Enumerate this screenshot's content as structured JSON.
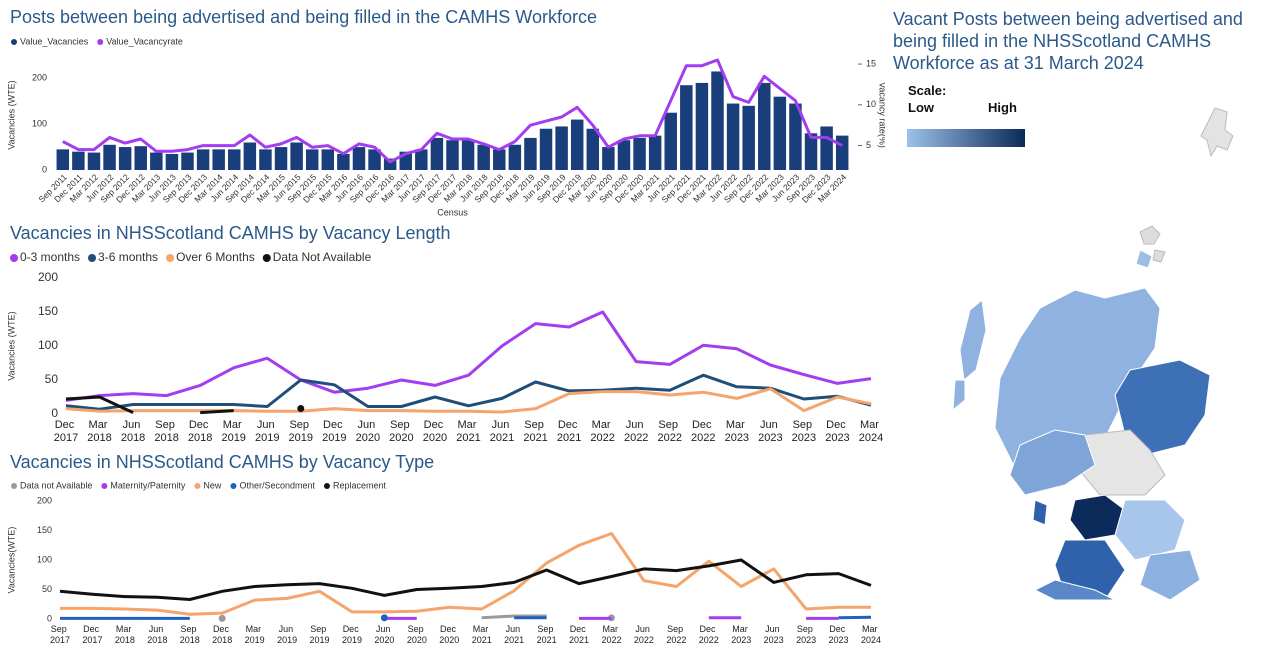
{
  "chart_data": [
    {
      "type": "combo",
      "title": "Posts between being advertised and being filled in the CAMHS Workforce",
      "x_label": "Census",
      "y_label": "Vacancies (WTE)",
      "y2_label": "Vacancy rate(%)",
      "categories": [
        "Sep 2011",
        "Dec 2011",
        "Mar 2012",
        "Jun 2012",
        "Sep 2012",
        "Dec 2012",
        "Mar 2013",
        "Jun 2013",
        "Sep 2013",
        "Dec 2013",
        "Mar 2014",
        "Jun 2014",
        "Sep 2014",
        "Dec 2014",
        "Mar 2015",
        "Jun 2015",
        "Sep 2015",
        "Dec 2015",
        "Mar 2016",
        "Jun 2016",
        "Sep 2016",
        "Dec 2016",
        "Mar 2017",
        "Jun 2017",
        "Sep 2017",
        "Dec 2017",
        "Mar 2018",
        "Jun 2018",
        "Sep 2018",
        "Dec 2018",
        "Mar 2019",
        "Jun 2019",
        "Sep 2019",
        "Dec 2019",
        "Mar 2020",
        "Jun 2020",
        "Sep 2020",
        "Dec 2020",
        "Mar 2021",
        "Jun 2021",
        "Sep 2021",
        "Dec 2021",
        "Mar 2022",
        "Jun 2022",
        "Sep 2022",
        "Dec 2022",
        "Mar 2023",
        "Jun 2023",
        "Sep 2023",
        "Dec 2023",
        "Mar 2024"
      ],
      "series": [
        {
          "name": "Value_Vacancies",
          "type": "bar",
          "color": "#1a3d7c",
          "values": [
            45,
            40,
            38,
            55,
            50,
            52,
            38,
            35,
            38,
            45,
            45,
            45,
            60,
            45,
            50,
            60,
            45,
            45,
            35,
            50,
            45,
            25,
            40,
            45,
            70,
            65,
            65,
            55,
            45,
            55,
            70,
            90,
            95,
            110,
            90,
            50,
            65,
            70,
            75,
            125,
            185,
            190,
            215,
            145,
            140,
            190,
            160,
            145,
            80,
            95,
            75
          ]
        },
        {
          "name": "Value_Vacancyrate",
          "type": "line",
          "axis": "y2",
          "color": "#a23df0",
          "values": [
            5.5,
            4.5,
            4.5,
            6,
            5.3,
            5.8,
            4.3,
            4.3,
            4.5,
            5,
            5,
            5,
            6.3,
            4.8,
            5.2,
            6,
            4.8,
            5,
            4,
            5.2,
            4.8,
            3,
            4,
            4.5,
            6.5,
            5.8,
            5.8,
            5.2,
            4.5,
            5.5,
            7.5,
            8,
            8.5,
            9.7,
            7.5,
            4.8,
            5.8,
            6.2,
            6.2,
            10.5,
            14.8,
            14.8,
            15.5,
            11,
            10.3,
            13.5,
            12,
            10.5,
            6,
            6,
            5
          ]
        }
      ],
      "ylim": [
        0,
        240
      ],
      "yticks": [
        0,
        100,
        200
      ],
      "y2lim": [
        2,
        15.5
      ],
      "y2ticks": [
        5,
        10,
        15
      ],
      "grid": false
    },
    {
      "type": "line",
      "title": "Vacancies in NHSScotland CAMHS by Vacancy Length",
      "y_label": "Vacancies (WTE)",
      "categories": [
        "Dec 2017",
        "Mar 2018",
        "Jun 2018",
        "Sep 2018",
        "Dec 2018",
        "Mar 2019",
        "Jun 2019",
        "Sep 2019",
        "Dec 2019",
        "Jun 2020",
        "Sep 2020",
        "Dec 2020",
        "Mar 2021",
        "Jun 2021",
        "Sep 2021",
        "Dec 2021",
        "Mar 2022",
        "Jun 2022",
        "Sep 2022",
        "Dec 2022",
        "Mar 2023",
        "Jun 2023",
        "Sep 2023",
        "Dec 2023",
        "Mar 2024"
      ],
      "series": [
        {
          "name": "0-3 months",
          "color": "#a23df0",
          "values": [
            20,
            27,
            30,
            27,
            42,
            68,
            82,
            50,
            32,
            38,
            50,
            42,
            57,
            100,
            133,
            128,
            150,
            77,
            73,
            101,
            96,
            72,
            58,
            45,
            52
          ]
        },
        {
          "name": "3-6 months",
          "color": "#1f4e79",
          "values": [
            12,
            7,
            14,
            14,
            14,
            14,
            11,
            50,
            43,
            11,
            11,
            25,
            12,
            23,
            47,
            34,
            35,
            38,
            35,
            57,
            40,
            38,
            22,
            26,
            13
          ]
        },
        {
          "name": "Over 6 Months",
          "color": "#f5a46b",
          "values": [
            8,
            4,
            5,
            5,
            5,
            5,
            4,
            4,
            8,
            5,
            5,
            4,
            4,
            3,
            8,
            30,
            33,
            33,
            28,
            32,
            23,
            37,
            5,
            25,
            15
          ]
        },
        {
          "name": "Data Not Available",
          "color": "#111111",
          "values": [
            22,
            25,
            2,
            null,
            2,
            5,
            null,
            8,
            null,
            null,
            null,
            null,
            null,
            null,
            null,
            null,
            null,
            null,
            null,
            null,
            null,
            null,
            null,
            null,
            null
          ]
        }
      ],
      "ylim": [
        0,
        200
      ],
      "yticks": [
        0,
        50,
        100,
        150,
        200
      ],
      "grid": false
    },
    {
      "type": "line",
      "title": "Vacancies in NHSScotland CAMHS by Vacancy Type",
      "y_label": "Vacancies(WTE)",
      "categories": [
        "Sep 2017",
        "Dec 2017",
        "Mar 2018",
        "Jun 2018",
        "Sep 2018",
        "Dec 2018",
        "Mar 2019",
        "Jun 2019",
        "Sep 2019",
        "Dec 2019",
        "Jun 2020",
        "Sep 2020",
        "Dec 2020",
        "Mar 2021",
        "Jun 2021",
        "Sep 2021",
        "Dec 2021",
        "Mar 2022",
        "Jun 2022",
        "Sep 2022",
        "Dec 2022",
        "Mar 2023",
        "Jun 2023",
        "Sep 2023",
        "Dec 2023",
        "Mar 2024"
      ],
      "series": [
        {
          "name": "Data not Available",
          "color": "#9a9a9a",
          "values": [
            null,
            null,
            null,
            null,
            null,
            1,
            null,
            null,
            null,
            null,
            null,
            null,
            null,
            2,
            5,
            5,
            null,
            2,
            null,
            null,
            null,
            null,
            null,
            null,
            null,
            null
          ]
        },
        {
          "name": "Maternity/Paternity",
          "color": "#a23df0",
          "values": [
            null,
            null,
            null,
            null,
            null,
            null,
            null,
            null,
            null,
            null,
            1,
            1,
            null,
            null,
            null,
            null,
            1,
            1,
            null,
            null,
            2,
            2,
            null,
            1,
            1,
            null
          ]
        },
        {
          "name": "New",
          "color": "#f5a46b",
          "values": [
            18,
            18,
            17,
            15,
            8,
            10,
            32,
            35,
            47,
            12,
            12,
            13,
            20,
            17,
            48,
            95,
            125,
            145,
            65,
            55,
            98,
            55,
            85,
            17,
            20,
            20
          ]
        },
        {
          "name": "Other/Secondment",
          "color": "#1f5fbf",
          "values": [
            1,
            1,
            1,
            1,
            1,
            null,
            null,
            null,
            null,
            null,
            2,
            null,
            null,
            null,
            2,
            2,
            null,
            null,
            null,
            null,
            null,
            null,
            null,
            null,
            2,
            3
          ]
        },
        {
          "name": "Replacement",
          "color": "#111111",
          "values": [
            47,
            42,
            38,
            37,
            33,
            47,
            55,
            58,
            60,
            52,
            40,
            50,
            52,
            55,
            62,
            83,
            60,
            72,
            85,
            82,
            90,
            100,
            62,
            75,
            77,
            57
          ]
        }
      ],
      "ylim": [
        0,
        200
      ],
      "yticks": [
        0,
        50,
        100,
        150,
        200
      ],
      "grid": false
    }
  ],
  "map": {
    "title": "Vacant Posts between being advertised and being filled in the NHSScotland CAMHS Workforce as at 31 March 2024",
    "scale_label": "Scale:",
    "low": "Low",
    "high": "High"
  }
}
